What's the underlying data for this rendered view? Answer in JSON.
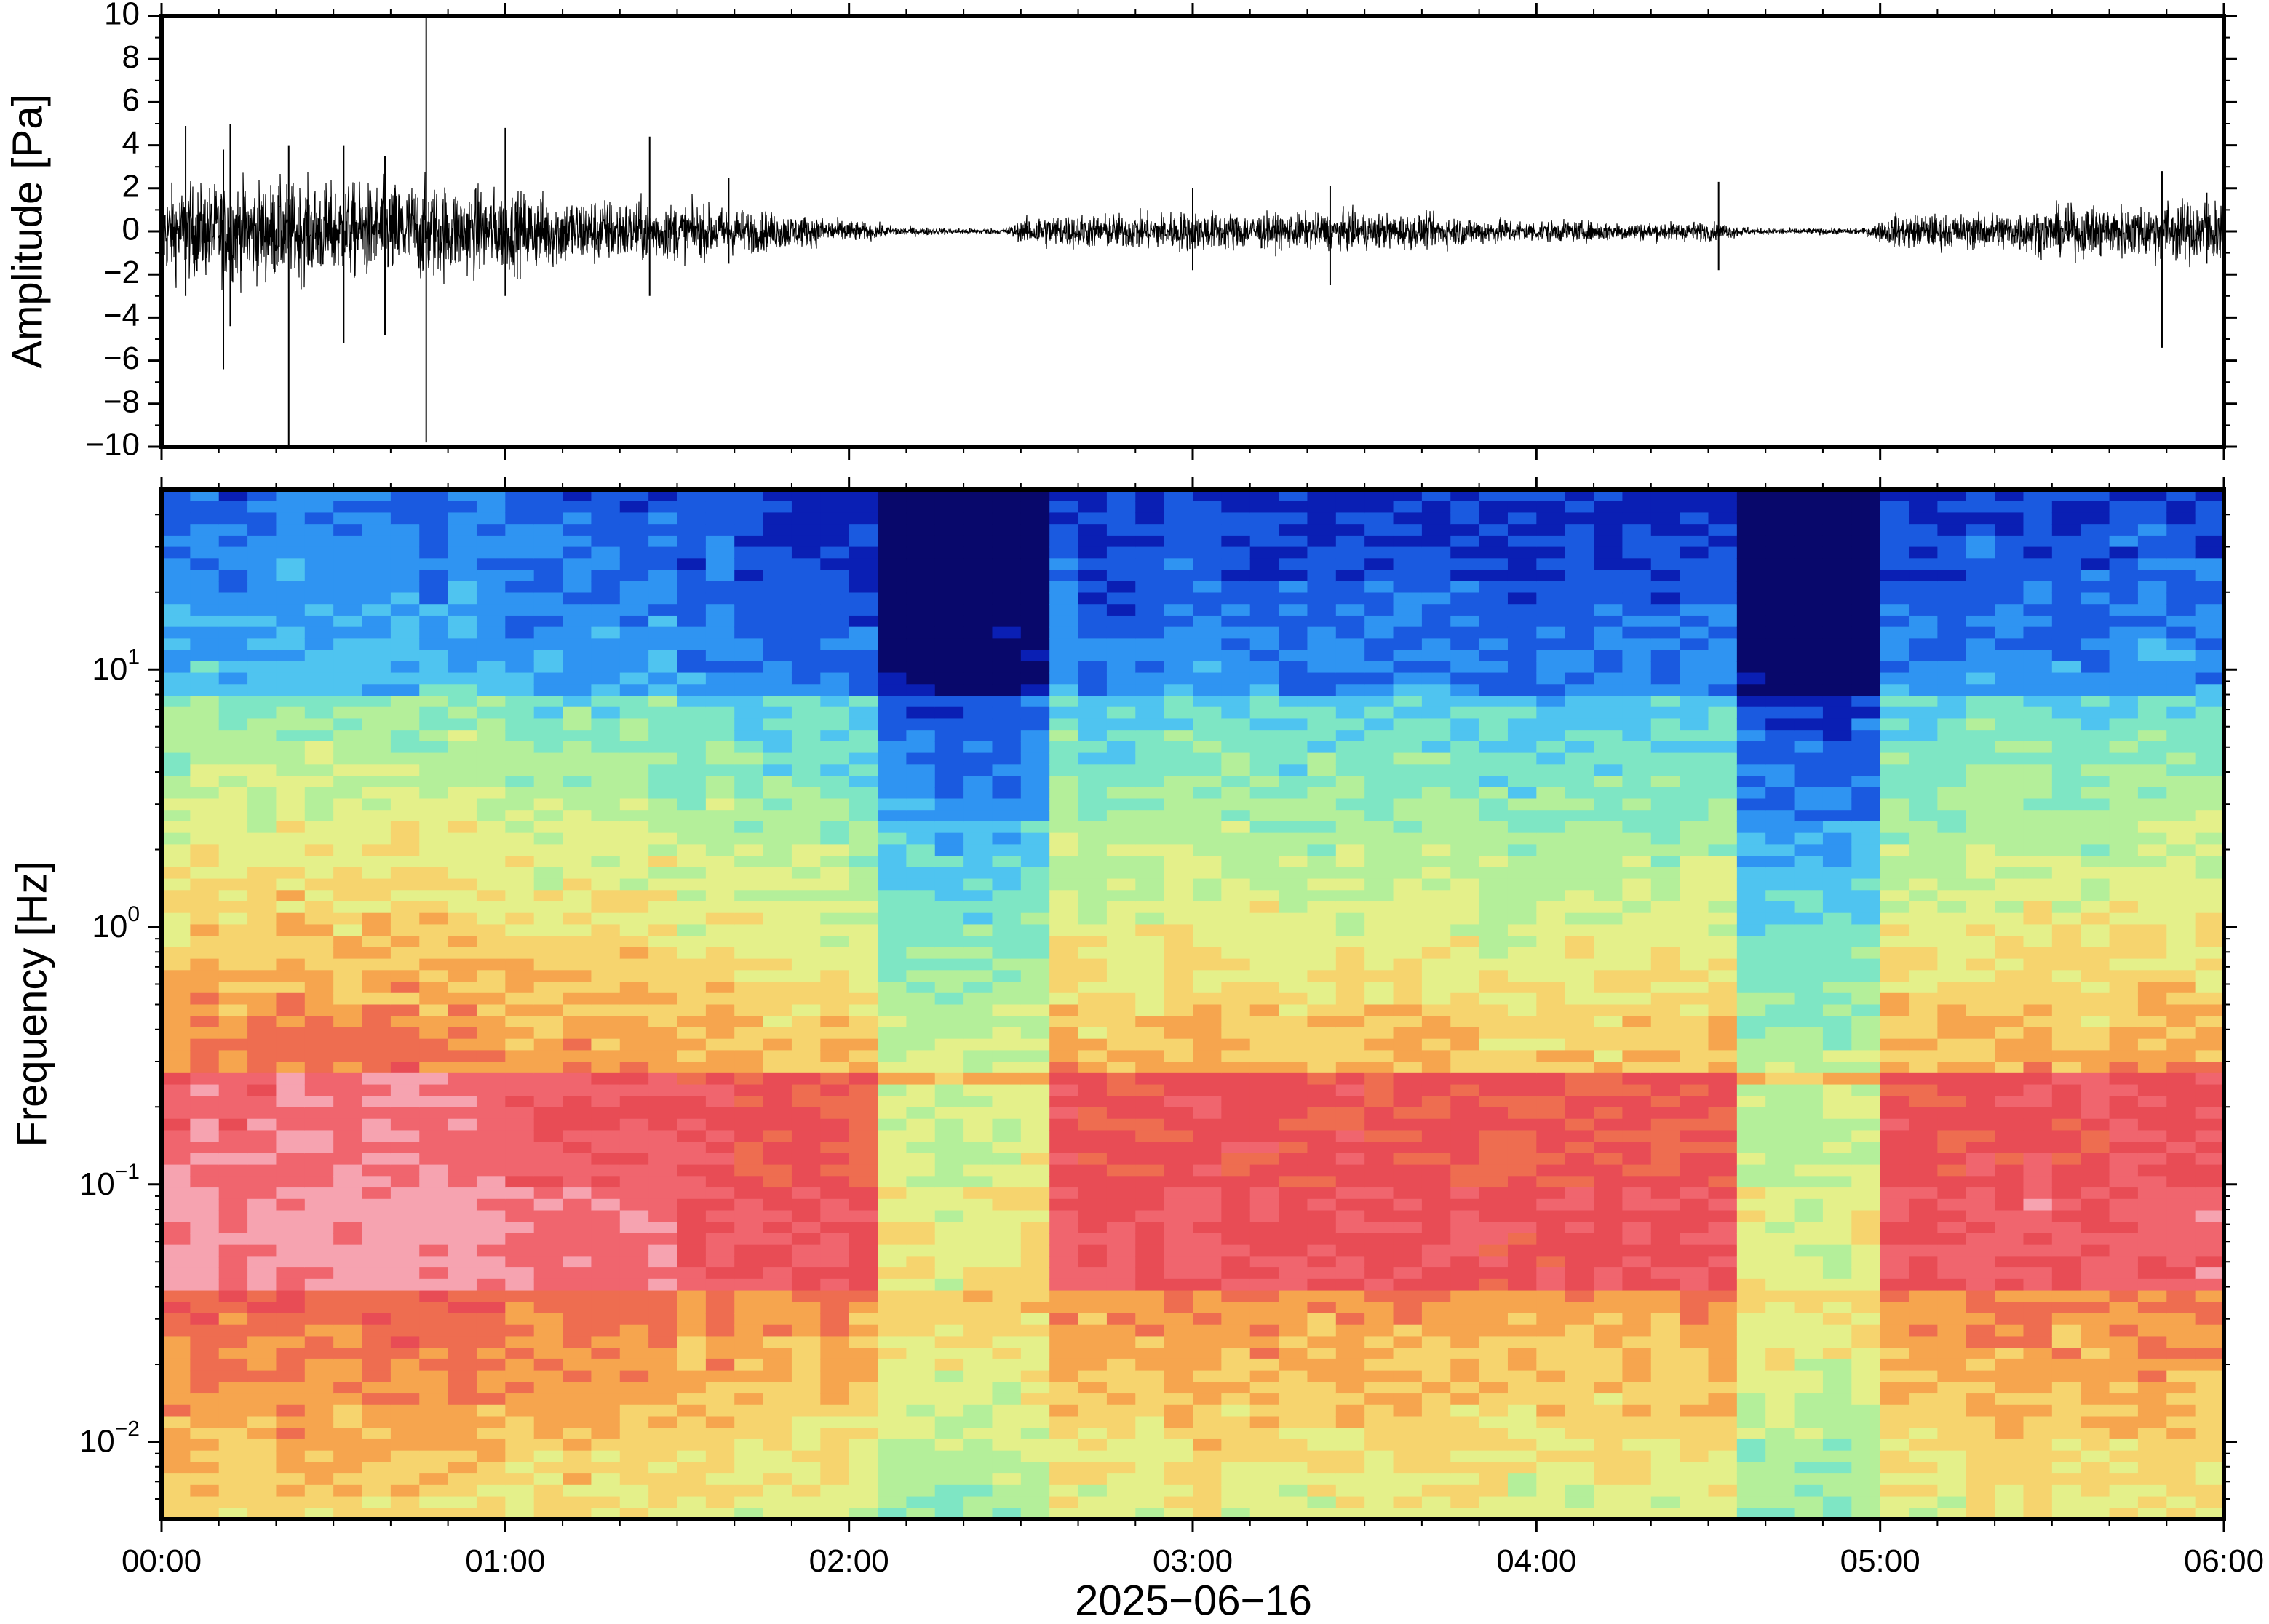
{
  "chart_data": [
    {
      "type": "line",
      "panel": "waveform",
      "ylabel": "Amplitude [Pa]",
      "ylim": [
        -10,
        10
      ],
      "yticks": [
        10,
        8,
        6,
        4,
        2,
        0,
        -2,
        -4,
        -6,
        -8,
        -10
      ],
      "ytick_labels": [
        "10",
        "8",
        "6",
        "4",
        "2",
        "0",
        "−2",
        "−4",
        "−6",
        "−8",
        "−10"
      ],
      "xlim_hours": [
        0,
        6
      ],
      "grid": false,
      "envelope": {
        "t_hours": [
          0.0,
          0.25,
          0.5,
          0.75,
          1.0,
          1.25,
          1.5,
          1.75,
          2.0,
          2.15,
          2.3,
          2.45,
          2.55,
          2.75,
          3.0,
          3.25,
          3.5,
          3.75,
          4.0,
          4.25,
          4.5,
          4.65,
          4.8,
          4.95,
          5.05,
          5.25,
          5.5,
          5.75,
          6.0
        ],
        "amplitude_pa": [
          1.4,
          1.6,
          1.5,
          1.6,
          1.3,
          1.1,
          0.9,
          0.65,
          0.35,
          0.15,
          0.1,
          0.1,
          0.55,
          0.55,
          0.65,
          0.55,
          0.6,
          0.5,
          0.35,
          0.3,
          0.3,
          0.1,
          0.1,
          0.1,
          0.55,
          0.55,
          0.75,
          0.9,
          1.1
        ]
      },
      "spikes": [
        {
          "t_hours": 0.07,
          "max": 4.9,
          "min": -3.0
        },
        {
          "t_hours": 0.18,
          "max": 3.8,
          "min": -6.4
        },
        {
          "t_hours": 0.2,
          "max": 5.0,
          "min": -4.4
        },
        {
          "t_hours": 0.37,
          "max": 4.0,
          "min": -10.0
        },
        {
          "t_hours": 0.53,
          "max": 4.0,
          "min": -5.2
        },
        {
          "t_hours": 0.65,
          "max": 3.5,
          "min": -4.8
        },
        {
          "t_hours": 0.77,
          "max": 9.9,
          "min": -9.8
        },
        {
          "t_hours": 1.0,
          "max": 4.8,
          "min": -3.0
        },
        {
          "t_hours": 1.42,
          "max": 4.4,
          "min": -3.0
        },
        {
          "t_hours": 1.65,
          "max": 2.5,
          "min": -1.5
        },
        {
          "t_hours": 3.0,
          "max": 2.0,
          "min": -1.8
        },
        {
          "t_hours": 3.4,
          "max": 2.1,
          "min": -2.5
        },
        {
          "t_hours": 4.53,
          "max": 2.3,
          "min": -1.8
        },
        {
          "t_hours": 5.82,
          "max": 2.8,
          "min": -5.4
        },
        {
          "t_hours": 5.95,
          "max": 1.8,
          "min": -1.5
        }
      ]
    },
    {
      "type": "heatmap",
      "panel": "spectrogram",
      "ylabel": "Frequency [Hz]",
      "yscale": "log",
      "ylim_hz": [
        0.005,
        50
      ],
      "yticks": [
        {
          "base": "10",
          "exp": "1",
          "value": 10
        },
        {
          "base": "10",
          "exp": "0",
          "value": 1
        },
        {
          "base": "10",
          "exp": "−1",
          "value": 0.1
        },
        {
          "base": "10",
          "exp": "−2",
          "value": 0.01
        }
      ],
      "xlim_hours": [
        0,
        6
      ],
      "colormap": [
        "#08086b",
        "#0a1fb4",
        "#1a5ae0",
        "#2f94f2",
        "#4fc4f0",
        "#7ee6c4",
        "#b4ef9a",
        "#e4f08a",
        "#f6d46e",
        "#f6a54e",
        "#ee6d50",
        "#e84c55",
        "#f0656e",
        "#f6a3b0"
      ],
      "quiet_intervals_hours": [
        [
          2.05,
          2.55
        ],
        [
          4.62,
          4.98
        ]
      ]
    }
  ],
  "x_axis": {
    "tick_labels": [
      "00:00",
      "01:00",
      "02:00",
      "03:00",
      "04:00",
      "05:00",
      "06:00"
    ],
    "date_label": "2025−06−16"
  }
}
